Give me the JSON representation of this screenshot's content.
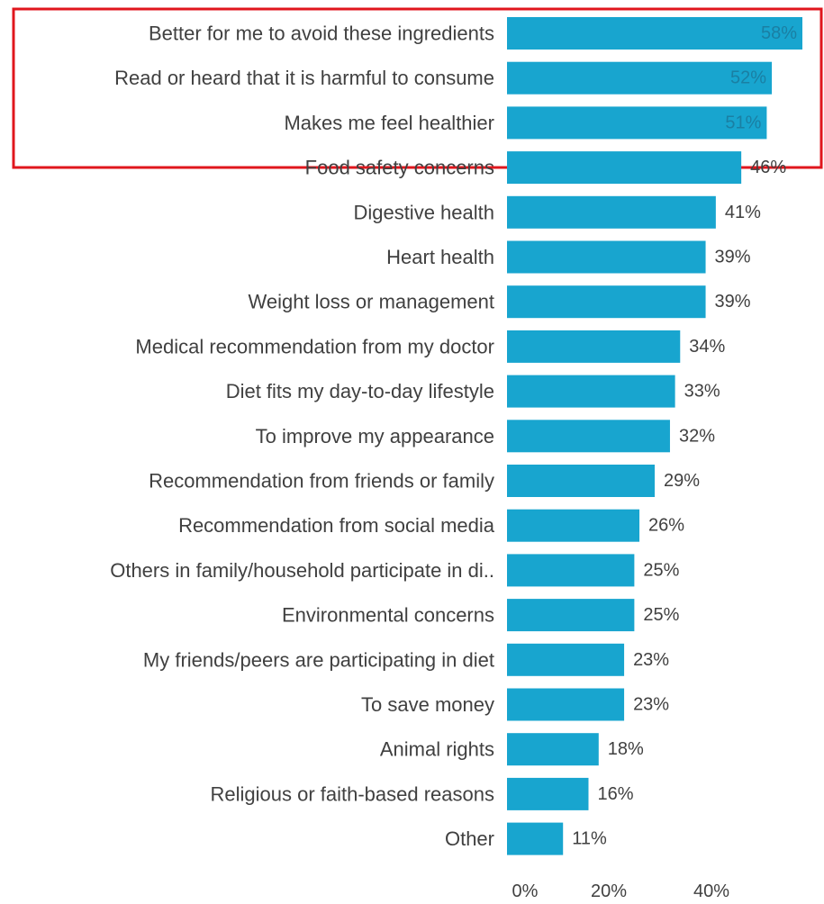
{
  "chart_data": {
    "type": "bar",
    "orientation": "horizontal",
    "categories": [
      "Better for me to avoid these ingredients",
      "Read or heard that it is harmful to consume",
      "Makes me feel healthier",
      "Food safety concerns",
      "Digestive health",
      "Heart health",
      "Weight loss or management",
      "Medical recommendation from my doctor",
      "Diet fits my day-to-day lifestyle",
      "To improve my appearance",
      "Recommendation from friends or family",
      "Recommendation from social media",
      "Others in family/household participate in di..",
      "Environmental concerns",
      "My friends/peers are participating in diet",
      "To save money",
      "Animal rights",
      "Religious or faith-based reasons",
      "Other"
    ],
    "values": [
      58,
      52,
      51,
      46,
      41,
      39,
      39,
      34,
      33,
      32,
      29,
      26,
      25,
      25,
      23,
      23,
      18,
      16,
      11
    ],
    "value_labels": [
      "58%",
      "52%",
      "51%",
      "46%",
      "41%",
      "39%",
      "39%",
      "34%",
      "33%",
      "32%",
      "29%",
      "26%",
      "25%",
      "25%",
      "23%",
      "23%",
      "18%",
      "16%",
      "11%"
    ],
    "x_ticks": [
      "0%",
      "20%",
      "40%"
    ],
    "xlim": [
      0,
      58
    ],
    "highlighted_categories": [
      0,
      1,
      2,
      3
    ],
    "colors": {
      "bar": "#18a5cf",
      "highlight_box": "#e0161d",
      "text": "#404040",
      "value_inside": "#1a7fa3"
    }
  }
}
